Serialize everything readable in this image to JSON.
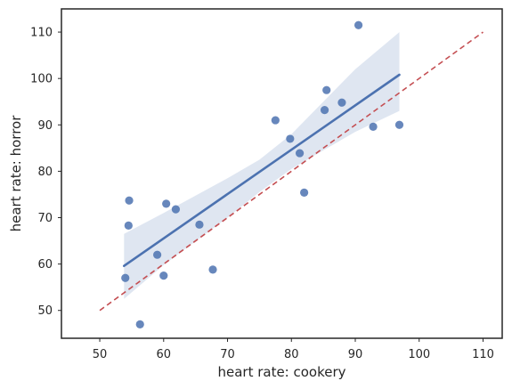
{
  "chart_data": {
    "type": "scatter",
    "title": "",
    "xlabel": "heart rate: cookery",
    "ylabel": "heart rate: horror",
    "xlim": [
      44,
      113
    ],
    "ylim": [
      44,
      115
    ],
    "xticks": [
      50,
      60,
      70,
      80,
      90,
      100,
      110
    ],
    "yticks": [
      50,
      60,
      70,
      80,
      90,
      100,
      110
    ],
    "grid": false,
    "points": [
      {
        "x": 54.0,
        "y": 57.0
      },
      {
        "x": 54.5,
        "y": 68.3
      },
      {
        "x": 54.6,
        "y": 73.7
      },
      {
        "x": 56.3,
        "y": 47.0
      },
      {
        "x": 59.0,
        "y": 62.0
      },
      {
        "x": 60.0,
        "y": 57.5
      },
      {
        "x": 60.4,
        "y": 73.0
      },
      {
        "x": 61.9,
        "y": 71.8
      },
      {
        "x": 65.6,
        "y": 68.5
      },
      {
        "x": 67.7,
        "y": 58.8
      },
      {
        "x": 77.5,
        "y": 91.0
      },
      {
        "x": 79.8,
        "y": 87.0
      },
      {
        "x": 81.3,
        "y": 83.9
      },
      {
        "x": 82.0,
        "y": 75.4
      },
      {
        "x": 85.2,
        "y": 93.2
      },
      {
        "x": 85.5,
        "y": 97.5
      },
      {
        "x": 87.9,
        "y": 94.8
      },
      {
        "x": 90.5,
        "y": 111.5
      },
      {
        "x": 92.8,
        "y": 89.6
      },
      {
        "x": 96.9,
        "y": 90.0
      }
    ],
    "regression": {
      "x": [
        53.8,
        96.9
      ],
      "y": [
        59.6,
        100.8
      ]
    },
    "confidence_band": {
      "x": [
        53.8,
        60,
        70,
        75,
        80,
        85,
        90,
        96.9
      ],
      "lower": [
        52.5,
        59.8,
        70.0,
        75.5,
        80.5,
        84.5,
        88.5,
        93.0
      ],
      "upper": [
        66.5,
        71.0,
        78.5,
        82.5,
        88.0,
        95.0,
        102.0,
        110.0
      ]
    },
    "identity_line": {
      "x": [
        50,
        110
      ],
      "y": [
        50,
        110
      ]
    },
    "colors": {
      "points": "#4c72b0",
      "regression": "#4c72b0",
      "band": "#dbe3f0",
      "identity": "#c44e52",
      "frame": "#262626"
    }
  }
}
